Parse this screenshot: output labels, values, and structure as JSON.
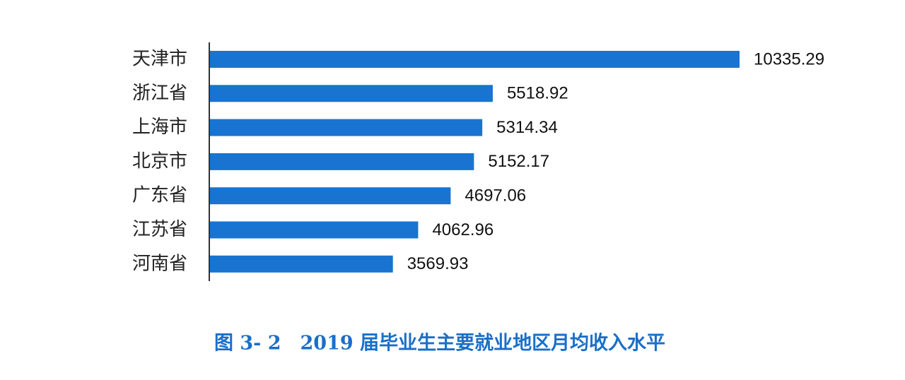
{
  "chart_data": {
    "type": "barh",
    "title": "图 3- 2　2019 届毕业生主要就业地区月均收入水平",
    "categories": [
      "天津市",
      "浙江省",
      "上海市",
      "北京市",
      "广东省",
      "江苏省",
      "河南省"
    ],
    "values": [
      10335.29,
      5518.92,
      5314.34,
      5152.17,
      4697.06,
      4062.96,
      3569.93
    ],
    "color": "#1874d0"
  }
}
